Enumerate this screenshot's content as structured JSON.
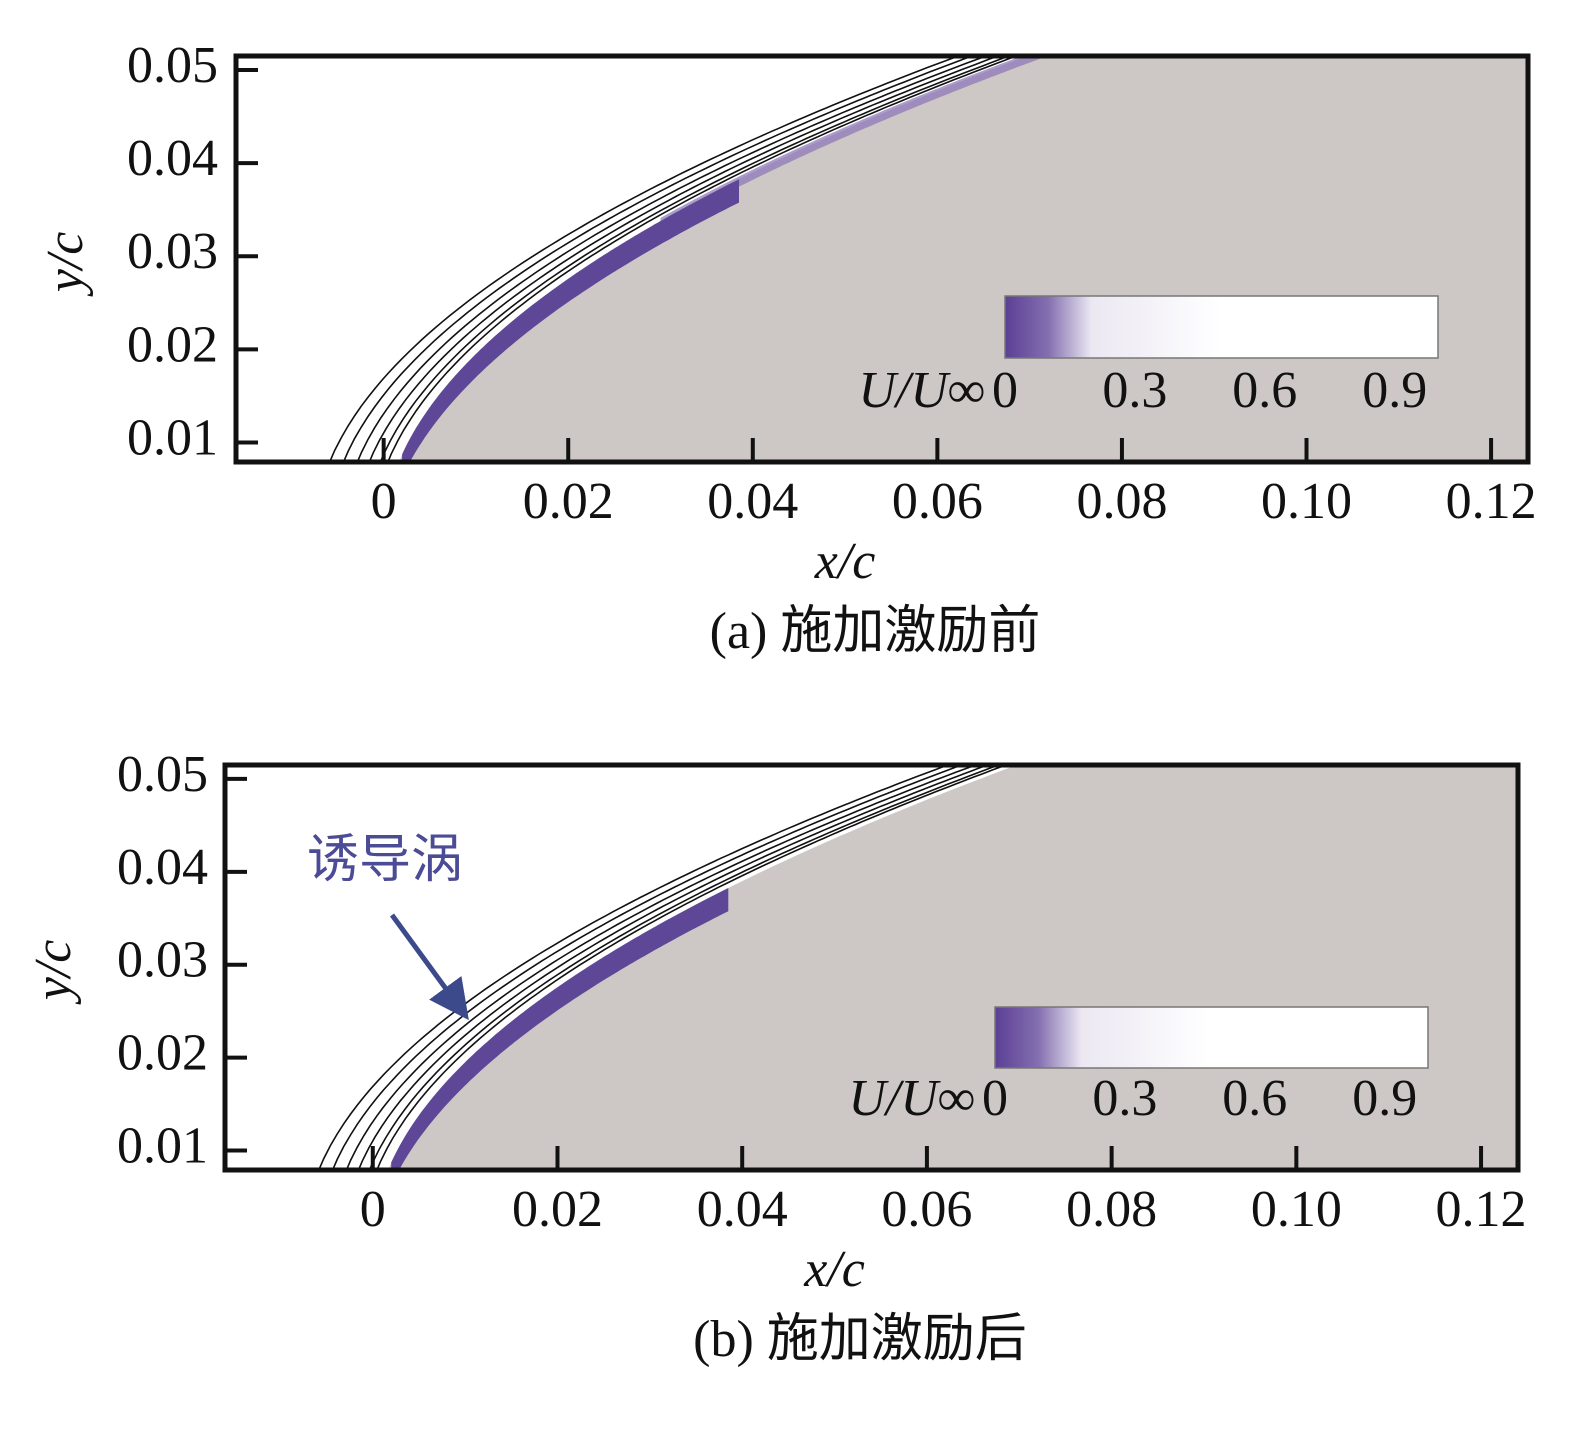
{
  "chart_data": [
    {
      "type": "contour",
      "caption": "(a) 施加激励前",
      "xlabel": "x/c",
      "ylabel": "y/c",
      "xlim": [
        -0.016,
        0.124
      ],
      "ylim": [
        0.0079,
        0.0515
      ],
      "xticks": [
        0,
        {
          "value": 0.02,
          "label": "0.02"
        },
        {
          "value": 0.04,
          "label": "0.04"
        },
        {
          "value": 0.06,
          "label": "0.06"
        },
        {
          "value": 0.08,
          "label": "0.08"
        },
        {
          "value": 0.1,
          "label": "0.10"
        },
        {
          "value": 0.12,
          "label": "0.12"
        }
      ],
      "yticks": [
        {
          "value": 0.01,
          "label": "0.01"
        },
        {
          "value": 0.02,
          "label": "0.02"
        },
        {
          "value": 0.03,
          "label": "0.03"
        },
        {
          "value": 0.04,
          "label": "0.04"
        },
        {
          "value": 0.05,
          "label": "0.05"
        }
      ],
      "colorbar": {
        "label": "U/U∞",
        "lim": [
          0,
          1
        ],
        "ticks": [
          0,
          0.3,
          0.6,
          0.9
        ],
        "color": "#5b3f95"
      }
    },
    {
      "type": "contour",
      "caption": "(b) 施加激励后",
      "xlabel": "x/c",
      "ylabel": "y/c",
      "annotation": "诱导涡",
      "xlim": [
        -0.016,
        0.124
      ],
      "ylim": [
        0.0079,
        0.0515
      ],
      "xticks": [
        0,
        {
          "value": 0.02,
          "label": "0.02"
        },
        {
          "value": 0.04,
          "label": "0.04"
        },
        {
          "value": 0.06,
          "label": "0.06"
        },
        {
          "value": 0.08,
          "label": "0.08"
        },
        {
          "value": 0.1,
          "label": "0.10"
        },
        {
          "value": 0.12,
          "label": "0.12"
        }
      ],
      "yticks": [
        {
          "value": 0.01,
          "label": "0.01"
        },
        {
          "value": 0.02,
          "label": "0.02"
        },
        {
          "value": 0.03,
          "label": "0.03"
        },
        {
          "value": 0.04,
          "label": "0.04"
        },
        {
          "value": 0.05,
          "label": "0.05"
        }
      ],
      "colorbar": {
        "label": "U/U∞",
        "lim": [
          0,
          1
        ],
        "ticks": [
          0,
          0.3,
          0.6,
          0.9
        ],
        "color": "#5b3f95"
      }
    }
  ]
}
